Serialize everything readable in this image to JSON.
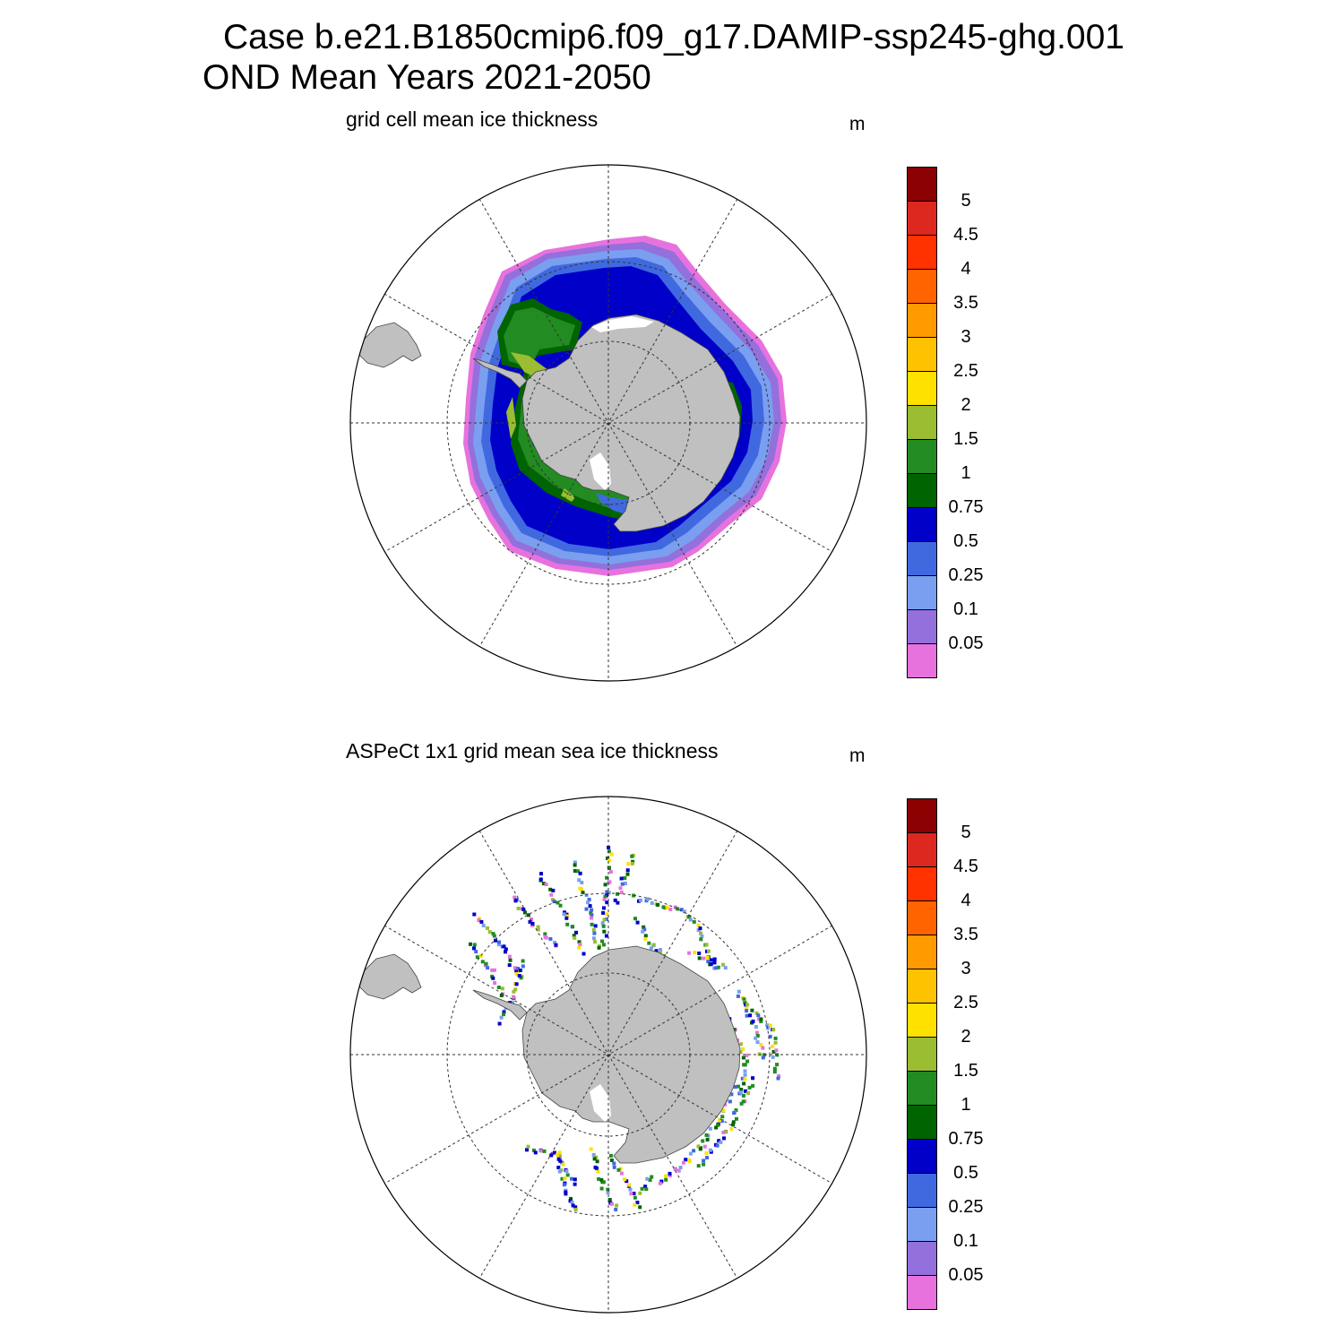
{
  "title": {
    "line1": "Case b.e21.B1850cmip6.f09_g17.DAMIP-ssp245-ghg.001",
    "line2": "OND Mean   Years 2021-2050"
  },
  "colors": {
    "land": "#c0c0c0",
    "levels": [
      "#e772de",
      "#9370db",
      "#7a9ff0",
      "#4069e0",
      "#0000c8",
      "#006400",
      "#228b22",
      "#9abd32",
      "#ffe100",
      "#ffc200",
      "#ff9a00",
      "#ff6400",
      "#ff3200",
      "#dc281e",
      "#8b0000"
    ]
  },
  "panels": [
    {
      "id": "model",
      "title": "grid cell mean ice thickness",
      "unit": "m",
      "colorbar_labels": [
        "5",
        "4.5",
        "4",
        "3.5",
        "3",
        "2.5",
        "2",
        "1.5",
        "1",
        "0.75",
        "0.5",
        "0.25",
        "0.1",
        "0.05"
      ]
    },
    {
      "id": "obs",
      "title": "ASPeCt 1x1 grid mean sea ice thickness",
      "unit": "m",
      "colorbar_labels": [
        "5",
        "4.5",
        "4",
        "3.5",
        "3",
        "2.5",
        "2",
        "1.5",
        "1",
        "0.75",
        "0.5",
        "0.25",
        "0.1",
        "0.05"
      ]
    }
  ]
}
